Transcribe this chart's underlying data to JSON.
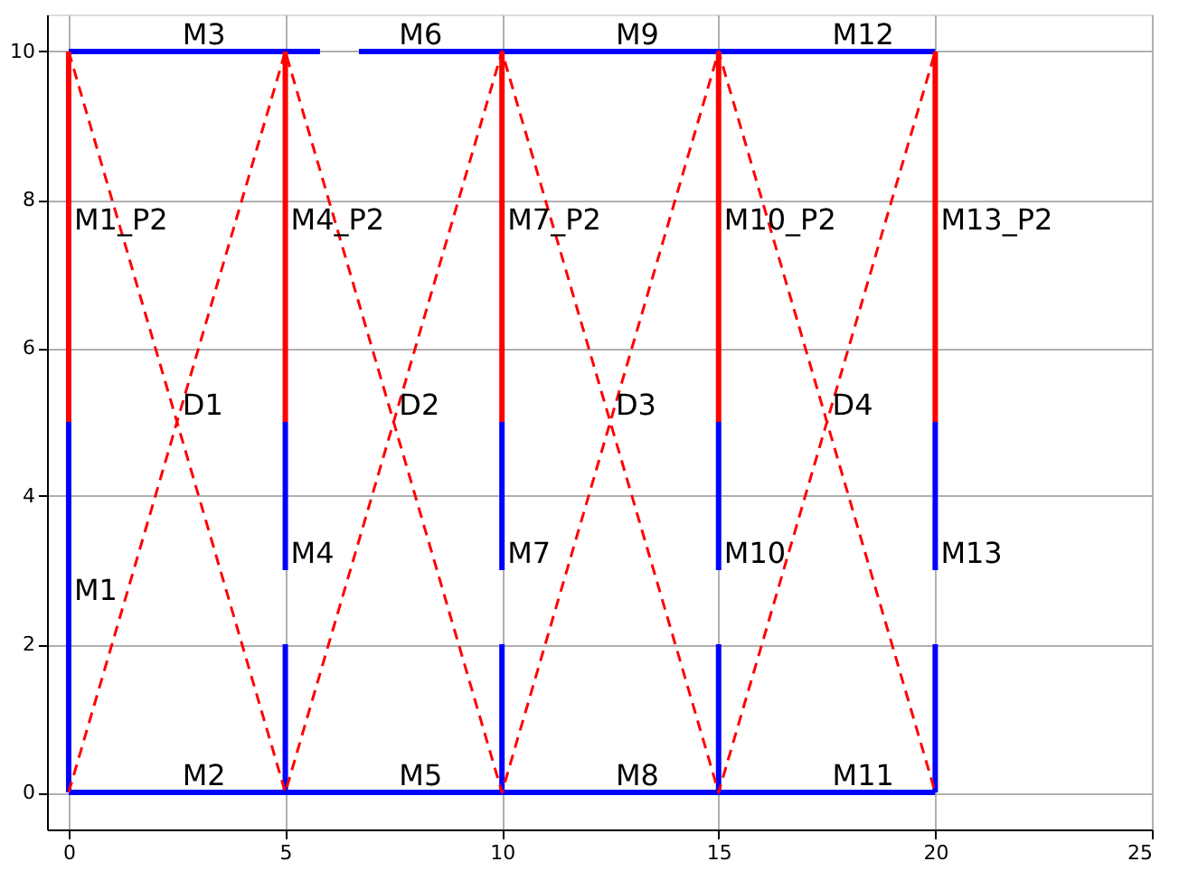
{
  "chart_data": {
    "type": "line",
    "xlim": [
      -0.5,
      25
    ],
    "ylim": [
      -0.5,
      10.5
    ],
    "xticks": [
      0,
      5,
      10,
      15,
      20,
      25
    ],
    "yticks": [
      0,
      2,
      4,
      6,
      8,
      10
    ],
    "grid": true,
    "line_style": "solid",
    "series": [
      {
        "color": "#0000ff",
        "x": [
          0,
          0
        ],
        "values": [
          0,
          5
        ]
      },
      {
        "color": "#0000ff",
        "x": [
          0,
          20
        ],
        "values": [
          0,
          0
        ]
      },
      {
        "color": "#0000ff",
        "x": [
          0,
          5.8
        ],
        "values": [
          10,
          10
        ]
      },
      {
        "color": "#0000ff",
        "x": [
          6.7,
          20
        ],
        "values": [
          10,
          10
        ]
      },
      {
        "color": "#0000ff",
        "x": [
          5,
          5
        ],
        "values": [
          0,
          2
        ]
      },
      {
        "color": "#0000ff",
        "x": [
          5,
          5
        ],
        "values": [
          3,
          5
        ]
      },
      {
        "color": "#0000ff",
        "x": [
          10,
          10
        ],
        "values": [
          0,
          2
        ]
      },
      {
        "color": "#0000ff",
        "x": [
          10,
          10
        ],
        "values": [
          3,
          5
        ]
      },
      {
        "color": "#0000ff",
        "x": [
          15,
          15
        ],
        "values": [
          0,
          2
        ]
      },
      {
        "color": "#0000ff",
        "x": [
          15,
          15
        ],
        "values": [
          3,
          5
        ]
      },
      {
        "color": "#0000ff",
        "x": [
          20,
          20
        ],
        "values": [
          0,
          2
        ]
      },
      {
        "color": "#0000ff",
        "x": [
          20,
          20
        ],
        "values": [
          3,
          5
        ]
      },
      {
        "color": "#ff0000",
        "x": [
          0,
          0
        ],
        "values": [
          5,
          10
        ]
      },
      {
        "color": "#ff0000",
        "x": [
          5,
          5
        ],
        "values": [
          5,
          10
        ]
      },
      {
        "color": "#ff0000",
        "x": [
          10,
          10
        ],
        "values": [
          5,
          10
        ]
      },
      {
        "color": "#ff0000",
        "x": [
          15,
          15
        ],
        "values": [
          5,
          10
        ]
      },
      {
        "color": "#ff0000",
        "x": [
          20,
          20
        ],
        "values": [
          5,
          10
        ]
      },
      {
        "color": "#ff0000",
        "line_style": "dashed",
        "x": [
          0,
          5,
          10,
          15,
          20
        ],
        "values": [
          0,
          10,
          0,
          10,
          0
        ]
      },
      {
        "color": "#ff0000",
        "line_style": "dashed",
        "x": [
          0,
          5,
          10,
          15,
          20
        ],
        "values": [
          10,
          0,
          10,
          0,
          10
        ]
      }
    ],
    "annotations": [
      {
        "text": "M1",
        "x": 0,
        "y": 2.5
      },
      {
        "text": "M1_P2",
        "x": 0,
        "y": 7.5
      },
      {
        "text": "D1",
        "x": 2.5,
        "y": 5
      },
      {
        "text": "M2",
        "x": 2.5,
        "y": 0
      },
      {
        "text": "M3",
        "x": 2.5,
        "y": 10
      },
      {
        "text": "M4",
        "x": 5,
        "y": 3
      },
      {
        "text": "M4_P2",
        "x": 5,
        "y": 7.5
      },
      {
        "text": "D2",
        "x": 7.5,
        "y": 5
      },
      {
        "text": "M5",
        "x": 7.5,
        "y": 0
      },
      {
        "text": "M6",
        "x": 7.5,
        "y": 10
      },
      {
        "text": "M7",
        "x": 10,
        "y": 3
      },
      {
        "text": "M7_P2",
        "x": 10,
        "y": 7.5
      },
      {
        "text": "D3",
        "x": 12.5,
        "y": 5
      },
      {
        "text": "M8",
        "x": 12.5,
        "y": 0
      },
      {
        "text": "M9",
        "x": 12.5,
        "y": 10
      },
      {
        "text": "M10",
        "x": 15,
        "y": 3
      },
      {
        "text": "M10_P2",
        "x": 15,
        "y": 7.5
      },
      {
        "text": "D4",
        "x": 17.5,
        "y": 5
      },
      {
        "text": "M11",
        "x": 17.5,
        "y": 0
      },
      {
        "text": "M12",
        "x": 17.5,
        "y": 10
      },
      {
        "text": "M13",
        "x": 20,
        "y": 3
      },
      {
        "text": "M13_P2",
        "x": 20,
        "y": 7.5
      }
    ]
  }
}
